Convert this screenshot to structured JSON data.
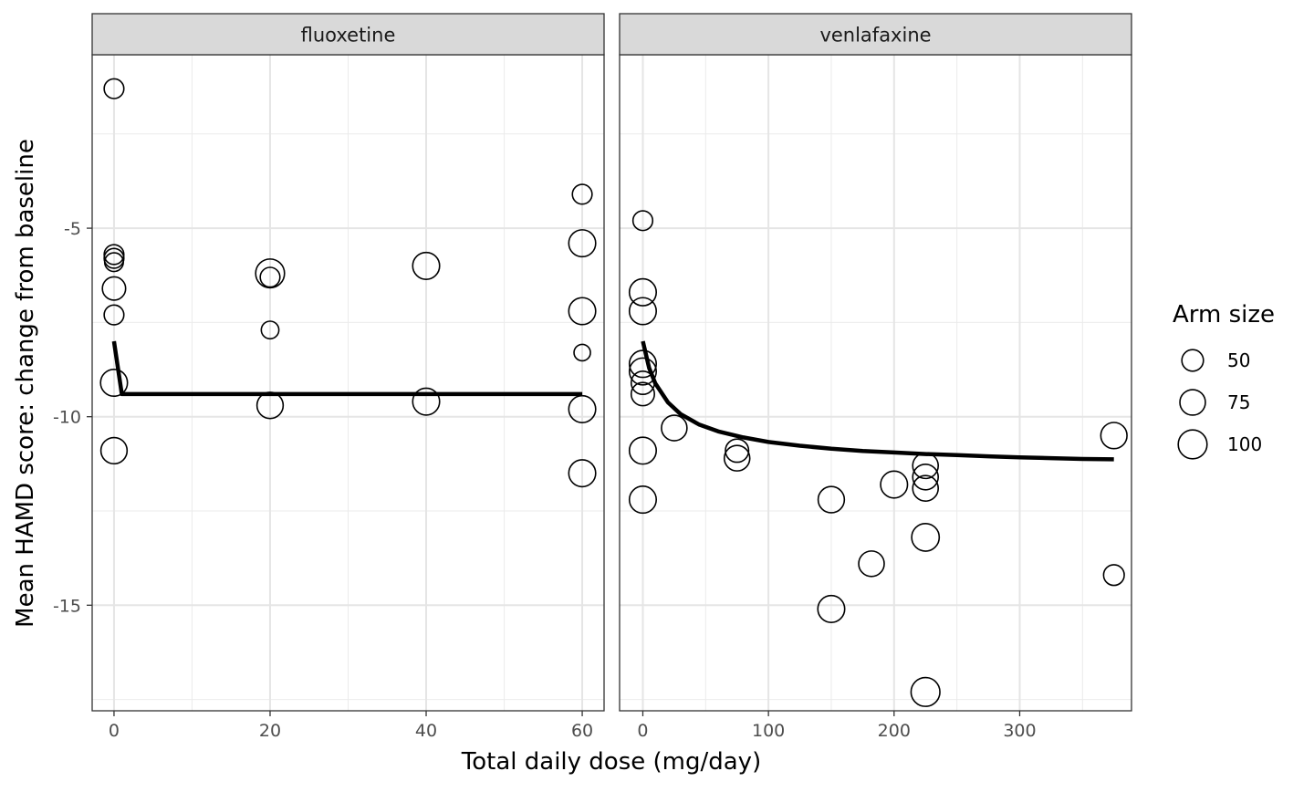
{
  "chart_data": {
    "type": "scatter",
    "xlabel": "Total daily dose (mg/day)",
    "ylabel": "Mean HAMD score: change from baseline",
    "ylim": [
      -17.8,
      -0.4
    ],
    "y_ticks": [
      -5,
      -10,
      -15
    ],
    "y_tick_labels": [
      "-5",
      "-10",
      "-15"
    ],
    "grid": true,
    "legend": {
      "title": "Arm size",
      "position": "right",
      "entries": [
        {
          "label": "50",
          "size": 50
        },
        {
          "label": "75",
          "size": 75
        },
        {
          "label": "100",
          "size": 100
        }
      ]
    },
    "facets": [
      {
        "title": "fluoxetine",
        "xlim": [
          -2.8,
          62.8
        ],
        "x_ticks": [
          0,
          20,
          40,
          60
        ],
        "x_tick_labels": [
          "0",
          "20",
          "40",
          "60"
        ],
        "x_minor": [
          10,
          30,
          50
        ],
        "points": [
          {
            "x": 0,
            "y": -1.3,
            "size": 40
          },
          {
            "x": 0,
            "y": -5.7,
            "size": 40
          },
          {
            "x": 0,
            "y": -5.8,
            "size": 40
          },
          {
            "x": 0,
            "y": -5.9,
            "size": 35
          },
          {
            "x": 0,
            "y": -6.6,
            "size": 60
          },
          {
            "x": 0,
            "y": -7.3,
            "size": 40
          },
          {
            "x": 0,
            "y": -9.1,
            "size": 85
          },
          {
            "x": 0,
            "y": -10.9,
            "size": 80
          },
          {
            "x": 20,
            "y": -6.2,
            "size": 100
          },
          {
            "x": 20,
            "y": -6.3,
            "size": 40
          },
          {
            "x": 20,
            "y": -7.7,
            "size": 30
          },
          {
            "x": 20,
            "y": -9.7,
            "size": 80
          },
          {
            "x": 40,
            "y": -6.0,
            "size": 85
          },
          {
            "x": 40,
            "y": -9.6,
            "size": 85
          },
          {
            "x": 60,
            "y": -4.1,
            "size": 40
          },
          {
            "x": 60,
            "y": -5.4,
            "size": 85
          },
          {
            "x": 60,
            "y": -7.2,
            "size": 85
          },
          {
            "x": 60,
            "y": -8.3,
            "size": 25
          },
          {
            "x": 60,
            "y": -9.8,
            "size": 85
          },
          {
            "x": 60,
            "y": -11.5,
            "size": 85
          }
        ],
        "curve": {
          "x": [
            0,
            1,
            2,
            5,
            10,
            20,
            30,
            40,
            50,
            60
          ],
          "y": [
            -8.0,
            -9.4,
            -9.4,
            -9.4,
            -9.4,
            -9.4,
            -9.4,
            -9.4,
            -9.4,
            -9.4
          ]
        }
      },
      {
        "title": "venlafaxine",
        "xlim": [
          -18.5,
          389
        ],
        "x_ticks": [
          0,
          100,
          200,
          300
        ],
        "x_tick_labels": [
          "0",
          "100",
          "200",
          "300"
        ],
        "x_minor": [
          50,
          150,
          250,
          350
        ],
        "points": [
          {
            "x": 0,
            "y": -4.8,
            "size": 40
          },
          {
            "x": 0,
            "y": -6.7,
            "size": 85
          },
          {
            "x": 0,
            "y": -7.2,
            "size": 85
          },
          {
            "x": 0,
            "y": -8.6,
            "size": 85
          },
          {
            "x": 0,
            "y": -8.8,
            "size": 85
          },
          {
            "x": 0,
            "y": -9.1,
            "size": 60
          },
          {
            "x": 0,
            "y": -9.4,
            "size": 60
          },
          {
            "x": 0,
            "y": -10.9,
            "size": 85
          },
          {
            "x": 0,
            "y": -12.2,
            "size": 85
          },
          {
            "x": 25,
            "y": -10.3,
            "size": 75
          },
          {
            "x": 75,
            "y": -10.9,
            "size": 60
          },
          {
            "x": 75,
            "y": -11.1,
            "size": 75
          },
          {
            "x": 150,
            "y": -12.2,
            "size": 80
          },
          {
            "x": 150,
            "y": -15.1,
            "size": 85
          },
          {
            "x": 182,
            "y": -13.9,
            "size": 75
          },
          {
            "x": 200,
            "y": -11.8,
            "size": 85
          },
          {
            "x": 225,
            "y": -11.3,
            "size": 75
          },
          {
            "x": 225,
            "y": -11.6,
            "size": 75
          },
          {
            "x": 225,
            "y": -11.9,
            "size": 75
          },
          {
            "x": 225,
            "y": -13.2,
            "size": 90
          },
          {
            "x": 225,
            "y": -17.3,
            "size": 100
          },
          {
            "x": 375,
            "y": -10.5,
            "size": 80
          },
          {
            "x": 375,
            "y": -14.2,
            "size": 45
          }
        ],
        "curve": {
          "x": [
            0,
            5,
            10,
            20,
            30,
            45,
            60,
            80,
            100,
            125,
            150,
            175,
            200,
            225,
            250,
            275,
            300,
            325,
            350,
            375
          ],
          "y": [
            -8.0,
            -8.71,
            -9.12,
            -9.62,
            -9.93,
            -10.21,
            -10.39,
            -10.55,
            -10.67,
            -10.77,
            -10.85,
            -10.91,
            -10.95,
            -10.99,
            -11.02,
            -11.05,
            -11.08,
            -11.1,
            -11.12,
            -11.13
          ]
        }
      }
    ]
  }
}
